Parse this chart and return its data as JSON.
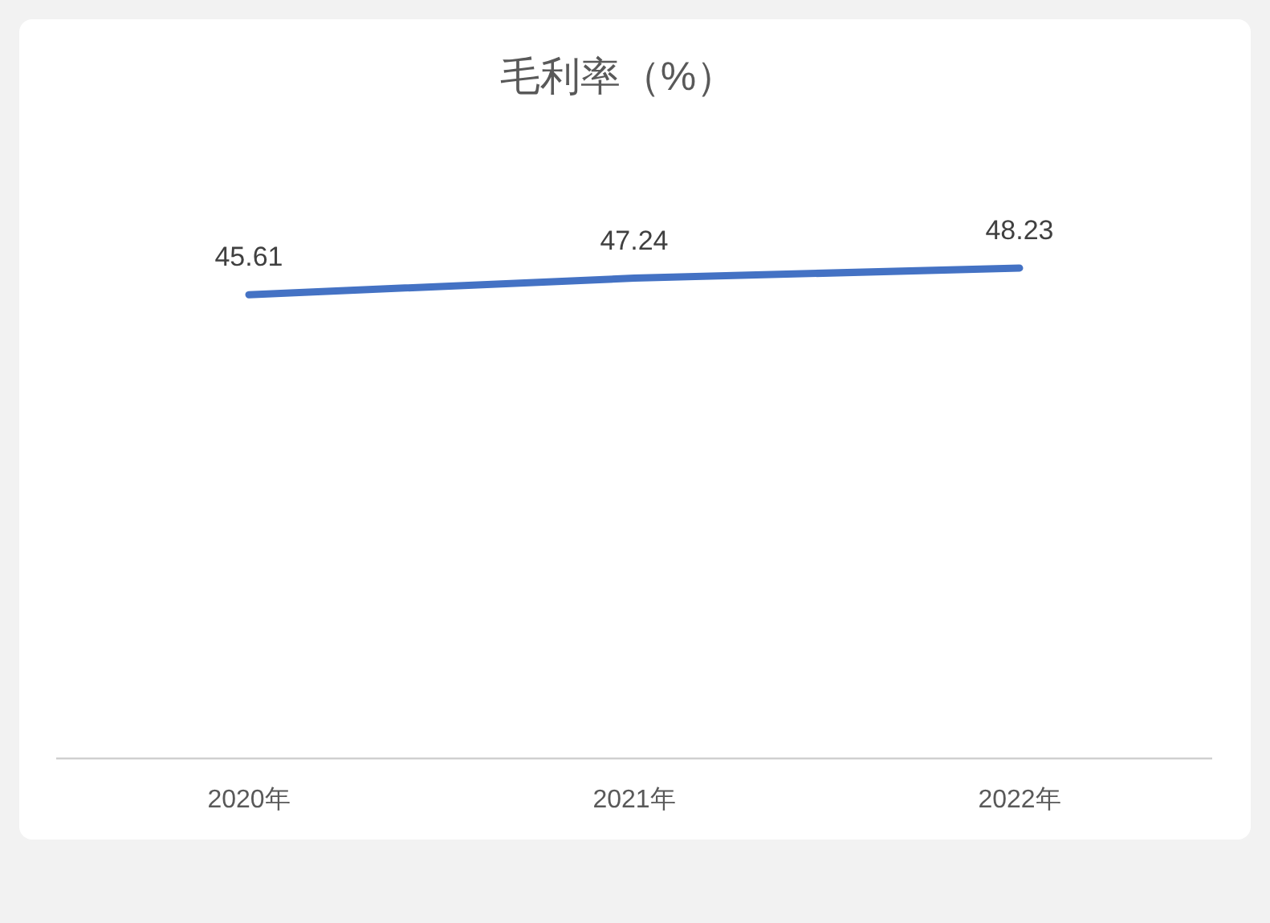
{
  "chart_data": {
    "type": "line",
    "title": "毛利率（%）",
    "categories": [
      "2020年",
      "2021年",
      "2022年"
    ],
    "series": [
      {
        "color": "#4472c4",
        "values": [
          45.61,
          47.24,
          48.23
        ]
      }
    ],
    "data_labels": true,
    "tick_labels": "x"
  }
}
